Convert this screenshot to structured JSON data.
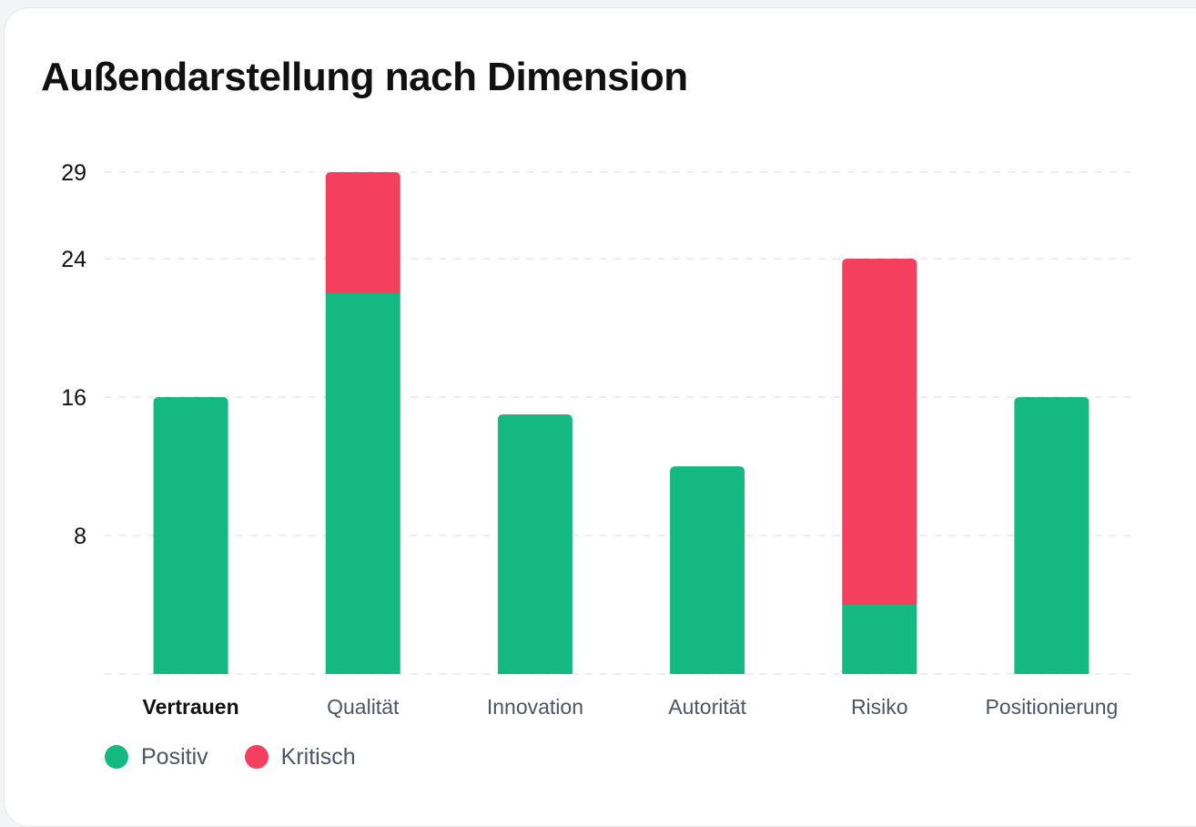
{
  "colors": {
    "positive": "#14b981",
    "critical": "#f43f5e",
    "grid": "#e5e7eb",
    "tick": "#111111",
    "category": "#4b5563",
    "category_active": "#111111"
  },
  "chart_data": {
    "type": "bar",
    "stacked": true,
    "title": "Außendarstellung nach Dimension",
    "categories": [
      "Vertrauen",
      "Qualität",
      "Innovation",
      "Autorität",
      "Risiko",
      "Positionierung"
    ],
    "active_category": "Vertrauen",
    "series": [
      {
        "name": "Positiv",
        "color": "#14b981",
        "values": [
          16,
          22,
          15,
          12,
          4,
          16
        ]
      },
      {
        "name": "Kritisch",
        "color": "#f43f5e",
        "values": [
          0,
          7,
          0,
          0,
          20,
          0
        ]
      }
    ],
    "y_ticks": [
      8,
      16,
      24,
      29
    ],
    "ylim": [
      0,
      29
    ],
    "grid": true,
    "grid_style": "dashed",
    "legend_position": "bottom-left"
  }
}
